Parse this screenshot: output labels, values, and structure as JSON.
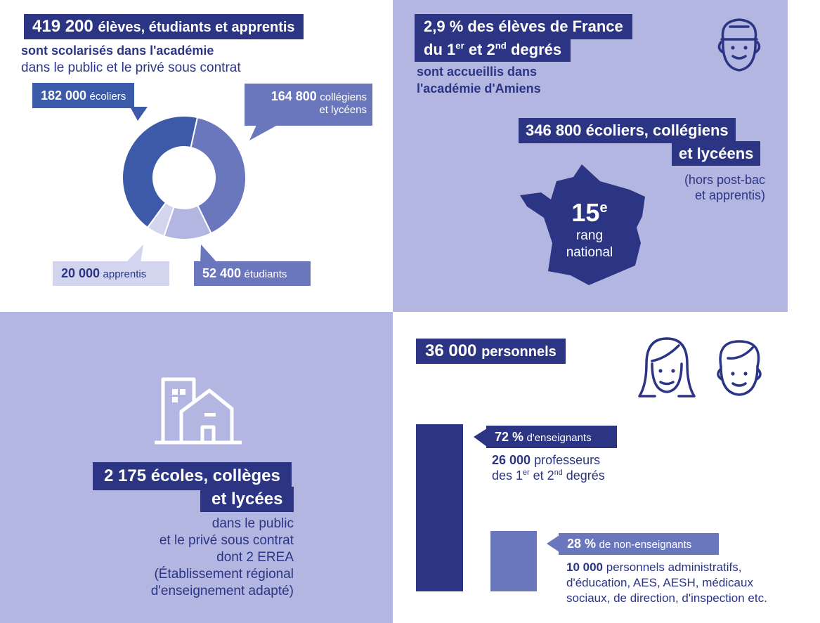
{
  "colors": {
    "navy": "#2b3584",
    "blue": "#3d5aa8",
    "mid": "#6a77bd",
    "light": "#b3b6e0",
    "pale": "#d3d5ee"
  },
  "students": {
    "headline_num": "419 200",
    "headline_text": "élèves, étudiants et apprentis",
    "sub_bold": "sont scolarisés dans l'académie",
    "sub_normal": "dans le public et le privé sous contrat"
  },
  "chart_data": {
    "type": "pie",
    "donut": true,
    "categories": [
      "écoliers",
      "collégiens et lycéens",
      "étudiants",
      "apprentis"
    ],
    "values": [
      182000,
      164800,
      52400,
      20000
    ],
    "colors": [
      "#3d5aa8",
      "#6a77bd",
      "#b3b6e0",
      "#d3d5ee"
    ],
    "labels": [
      {
        "num": "182 000",
        "text": "écoliers"
      },
      {
        "num": "164 800",
        "text1": "collégiens",
        "text2": "et lycéens"
      },
      {
        "num": "52 400",
        "text": "étudiants"
      },
      {
        "num": "20 000",
        "text": "apprentis"
      }
    ]
  },
  "france": {
    "line1": "2,9 % des élèves de France",
    "line2_pre": "du 1",
    "line2_sup1": "er",
    "line2_mid": " et 2",
    "line2_sup2": "nd",
    "line2_post": " degrés",
    "sub1": "sont accueillis dans",
    "sub2": "l'académie d'Amiens",
    "count_line1": "346 800 écoliers, collégiens",
    "count_line2": "et lycéens",
    "note1": "(hors post-bac",
    "note2": "et apprentis)",
    "rank_num": "15",
    "rank_sup": "e",
    "rank_l1": "rang",
    "rank_l2": "national"
  },
  "schools": {
    "line1": "2 175 écoles, collèges",
    "line2": "et lycées",
    "desc": [
      "dans le public",
      "et le privé sous contrat",
      "dont 2 EREA",
      "(Établissement régional",
      "d'enseignement adapté)"
    ]
  },
  "staff": {
    "headline_num": "36 000",
    "headline_text": "personnels",
    "teachers_pct": "72 %",
    "teachers_label": "d'enseignants",
    "teachers_num": "26 000",
    "teachers_desc1": "professeurs",
    "teachers_desc2_pre": "des 1",
    "teachers_desc2_sup1": "er",
    "teachers_desc2_mid": " et 2",
    "teachers_desc2_sup2": "nd",
    "teachers_desc2_post": " degrés",
    "non_pct": "28 %",
    "non_label": "de non-enseignants",
    "non_num": "10 000",
    "non_desc1": "personnels administratifs,",
    "non_desc2": "d'éducation, AES, AESH, médicaux",
    "non_desc3": "sociaux, de direction, d'inspection etc."
  }
}
